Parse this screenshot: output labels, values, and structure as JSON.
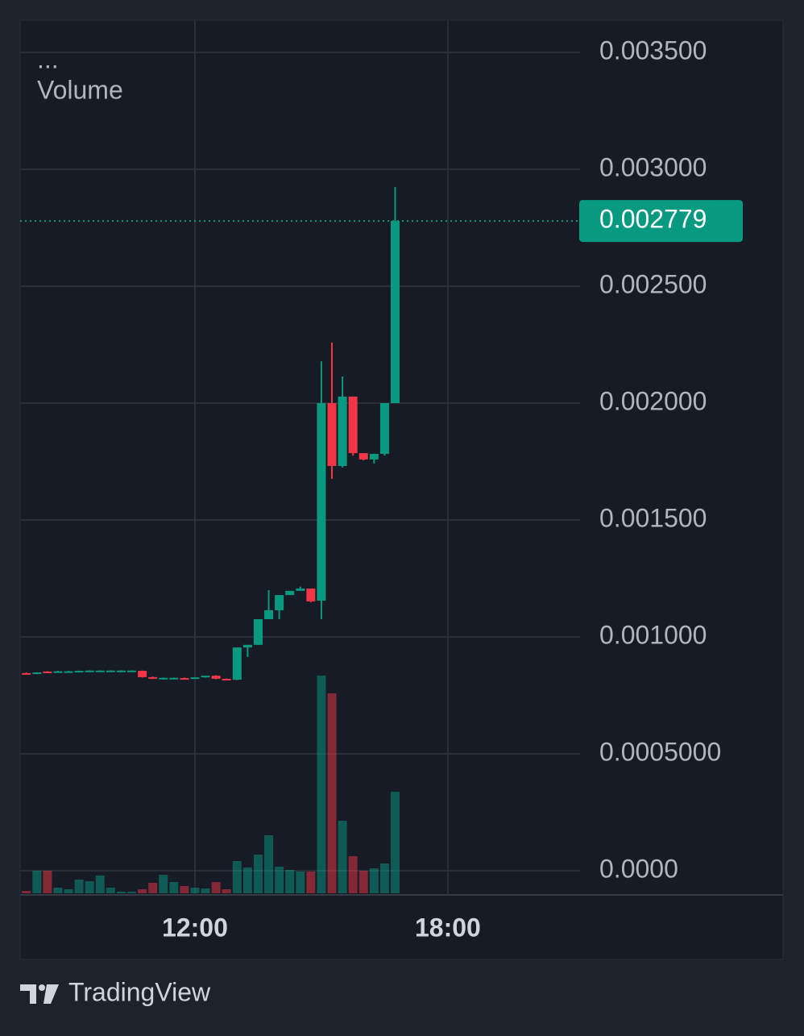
{
  "chart_data": {
    "type": "candlestick",
    "legend_marker": "...",
    "volume_label": "Volume",
    "brand": "TradingView",
    "up_color": "#089981",
    "down_color": "#f23645",
    "categories": [
      null,
      null,
      null,
      null,
      null,
      null,
      null,
      null,
      null,
      null,
      null,
      null,
      null,
      null,
      null,
      null,
      "12:00",
      null,
      null,
      null,
      null,
      null,
      null,
      null,
      null,
      null,
      null,
      null,
      null,
      null,
      null,
      null,
      null,
      null,
      null,
      null,
      null,
      null,
      null,
      null,
      "18:00",
      null,
      null,
      null,
      null,
      null,
      null,
      null,
      null,
      null,
      null,
      null,
      null
    ],
    "open": [
      0.000845,
      0.000845,
      0.000852,
      0.000852,
      0.000852,
      0.000852,
      0.000855,
      0.000855,
      0.000855,
      0.000855,
      0.000855,
      0.000855,
      0.000828,
      0.000824,
      0.000824,
      0.000824,
      0.000824,
      0.000828,
      0.000834,
      0.000821,
      0.000817,
      0.000955,
      0.000966,
      0.001076,
      0.001114,
      0.001179,
      0.001197,
      0.001207,
      0.001155,
      0.002,
      0.001731,
      0.002028,
      0.001786,
      0.001759,
      0.001783,
      0.002,
      null,
      null,
      null,
      null,
      null,
      null,
      null,
      null,
      null,
      null,
      null,
      null,
      null,
      null,
      null,
      null,
      null
    ],
    "high": [
      0.000848,
      0.000849,
      0.000853,
      0.000855,
      0.000855,
      0.000856,
      0.000857,
      0.000857,
      0.000857,
      0.000857,
      0.000857,
      0.000856,
      0.00083,
      0.000826,
      0.000826,
      0.000826,
      0.000828,
      0.000834,
      0.000836,
      0.000822,
      0.000955,
      0.000966,
      0.001076,
      0.0012,
      0.001179,
      0.001197,
      0.001215,
      0.001207,
      0.002179,
      0.002259,
      0.002114,
      0.002028,
      0.001786,
      0.001783,
      0.002,
      0.002924,
      null,
      null,
      null,
      null,
      null,
      null,
      null,
      null,
      null,
      null,
      null,
      null,
      null,
      null,
      null,
      null,
      null
    ],
    "low": [
      0.000843,
      0.000843,
      0.000849,
      0.000851,
      0.000851,
      0.000851,
      0.000853,
      0.000853,
      0.000853,
      0.000853,
      0.000853,
      0.000826,
      0.00082,
      0.000822,
      0.000822,
      0.000819,
      0.000822,
      0.000826,
      0.000819,
      0.000815,
      0.000815,
      0.000914,
      0.000966,
      0.001076,
      0.001076,
      0.001179,
      0.001197,
      0.001148,
      0.001076,
      0.001676,
      0.001724,
      0.001776,
      0.001755,
      0.001741,
      0.001776,
      0.002,
      null,
      null,
      null,
      null,
      null,
      null,
      null,
      null,
      null,
      null,
      null,
      null,
      null,
      null,
      null,
      null,
      null
    ],
    "close": [
      0.000843,
      0.000848,
      0.000849,
      0.000853,
      0.000853,
      0.000855,
      0.000856,
      0.000856,
      0.000856,
      0.000856,
      0.000856,
      0.000828,
      0.000821,
      0.000825,
      0.000825,
      0.000821,
      0.000827,
      0.000834,
      0.000821,
      0.000817,
      0.000955,
      0.000966,
      0.001076,
      0.001114,
      0.001179,
      0.001197,
      0.001207,
      0.001152,
      0.002,
      0.001731,
      0.002028,
      0.001786,
      0.001759,
      0.001783,
      0.002,
      0.002779,
      null,
      null,
      null,
      null,
      null,
      null,
      null,
      null,
      null,
      null,
      null,
      null,
      null,
      null,
      null,
      null,
      null
    ],
    "volume": [
      3,
      28,
      28,
      7,
      5,
      17,
      15,
      22,
      7,
      2,
      2,
      5,
      13,
      23,
      14,
      9,
      7,
      6,
      14,
      5,
      40,
      32,
      48,
      72,
      33,
      29,
      27,
      27,
      270,
      248,
      90,
      46,
      28,
      31,
      37,
      126,
      null,
      null,
      null,
      null,
      null,
      null,
      null,
      null,
      null,
      null,
      null,
      null,
      null,
      null,
      null,
      null,
      null
    ],
    "last_price": 0.002779,
    "ylim": [
      0,
      0.0035
    ],
    "yticks": [
      {
        "value": 0,
        "label": "0.0000"
      },
      {
        "value": 0.0005,
        "label": "0.0005000"
      },
      {
        "value": 0.001,
        "label": "0.001000"
      },
      {
        "value": 0.0015,
        "label": "0.001500"
      },
      {
        "value": 0.002,
        "label": "0.002000"
      },
      {
        "value": 0.0025,
        "label": "0.002500"
      },
      {
        "value": 0.003,
        "label": "0.003000"
      },
      {
        "value": 0.0035,
        "label": "0.003500"
      }
    ],
    "grid": true
  }
}
